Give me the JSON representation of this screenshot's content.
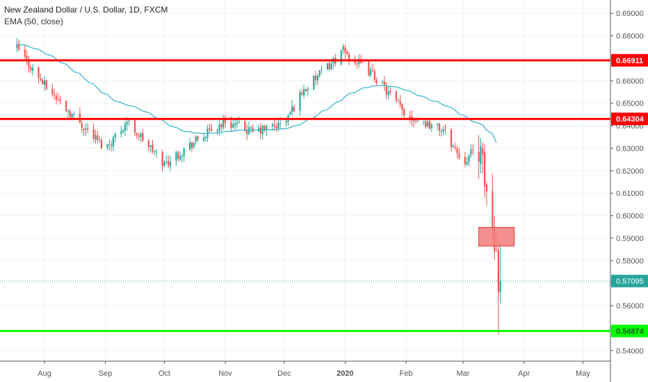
{
  "header": {
    "title": "New Zealand Dollar / U.S. Dollar, 1D, FXCM",
    "indicator": "EMA (50, close)"
  },
  "colors": {
    "up": "#26a69a",
    "down": "#ef5350",
    "ema": "#3cb8c8",
    "resistance": "#ff0000",
    "support": "#00ff00",
    "box_fill": "#f47b7b",
    "box_stroke": "#e53935",
    "last_price": "#26a69a",
    "grid": "#f0f3f5",
    "axis_text": "#555555"
  },
  "chart_data": {
    "type": "candlestick",
    "y_range": [
      0.535,
      0.695
    ],
    "y_ticks": [
      "0.69000",
      "0.68000",
      "0.67000",
      "0.66000",
      "0.65000",
      "0.64000",
      "0.63000",
      "0.62000",
      "0.61000",
      "0.60000",
      "0.59000",
      "0.58000",
      "0.57000",
      "0.56000",
      "0.55000",
      "0.54000"
    ],
    "x_labels": [
      "Aug",
      "Sep",
      "Oct",
      "Nov",
      "Dec",
      "2020",
      "Feb",
      "Mar",
      "Apr",
      "May"
    ],
    "horizontal_lines": [
      {
        "name": "resistance-upper",
        "value": 0.66911,
        "label": "0.66911",
        "color": "#ff0000"
      },
      {
        "name": "resistance-lower",
        "value": 0.64304,
        "label": "0.64304",
        "color": "#ff0000"
      },
      {
        "name": "support",
        "value": 0.54874,
        "label": "0.54874",
        "color": "#00ff00"
      }
    ],
    "last_price": {
      "value": 0.57095,
      "label": "0.57095"
    },
    "zone": {
      "from": "2020-03-09",
      "to": "2020-03-20",
      "top": 0.5948,
      "bottom": 0.5865
    },
    "ohlc_description": "Daily NZD/USD candles from mid-July 2019 to 20 March 2020, with EMA(50) overlay",
    "key_points": [
      {
        "date": "2019-07-18",
        "close": 0.6745
      },
      {
        "date": "2019-08-01",
        "close": 0.658
      },
      {
        "date": "2019-08-15",
        "close": 0.645
      },
      {
        "date": "2019-09-01",
        "close": 0.63
      },
      {
        "date": "2019-09-12",
        "close": 0.642
      },
      {
        "date": "2019-10-01",
        "close": 0.623
      },
      {
        "date": "2019-10-15",
        "close": 0.632
      },
      {
        "date": "2019-11-01",
        "close": 0.642
      },
      {
        "date": "2019-11-15",
        "close": 0.637
      },
      {
        "date": "2019-12-01",
        "close": 0.641
      },
      {
        "date": "2019-12-10",
        "close": 0.655
      },
      {
        "date": "2019-12-31",
        "close": 0.673
      },
      {
        "date": "2020-01-15",
        "close": 0.663
      },
      {
        "date": "2020-02-01",
        "close": 0.645
      },
      {
        "date": "2020-02-20",
        "close": 0.638
      },
      {
        "date": "2020-03-01",
        "close": 0.624
      },
      {
        "date": "2020-03-09",
        "close": 0.631
      },
      {
        "date": "2020-03-16",
        "close": 0.595
      },
      {
        "date": "2020-03-20",
        "close": 0.571
      }
    ]
  }
}
